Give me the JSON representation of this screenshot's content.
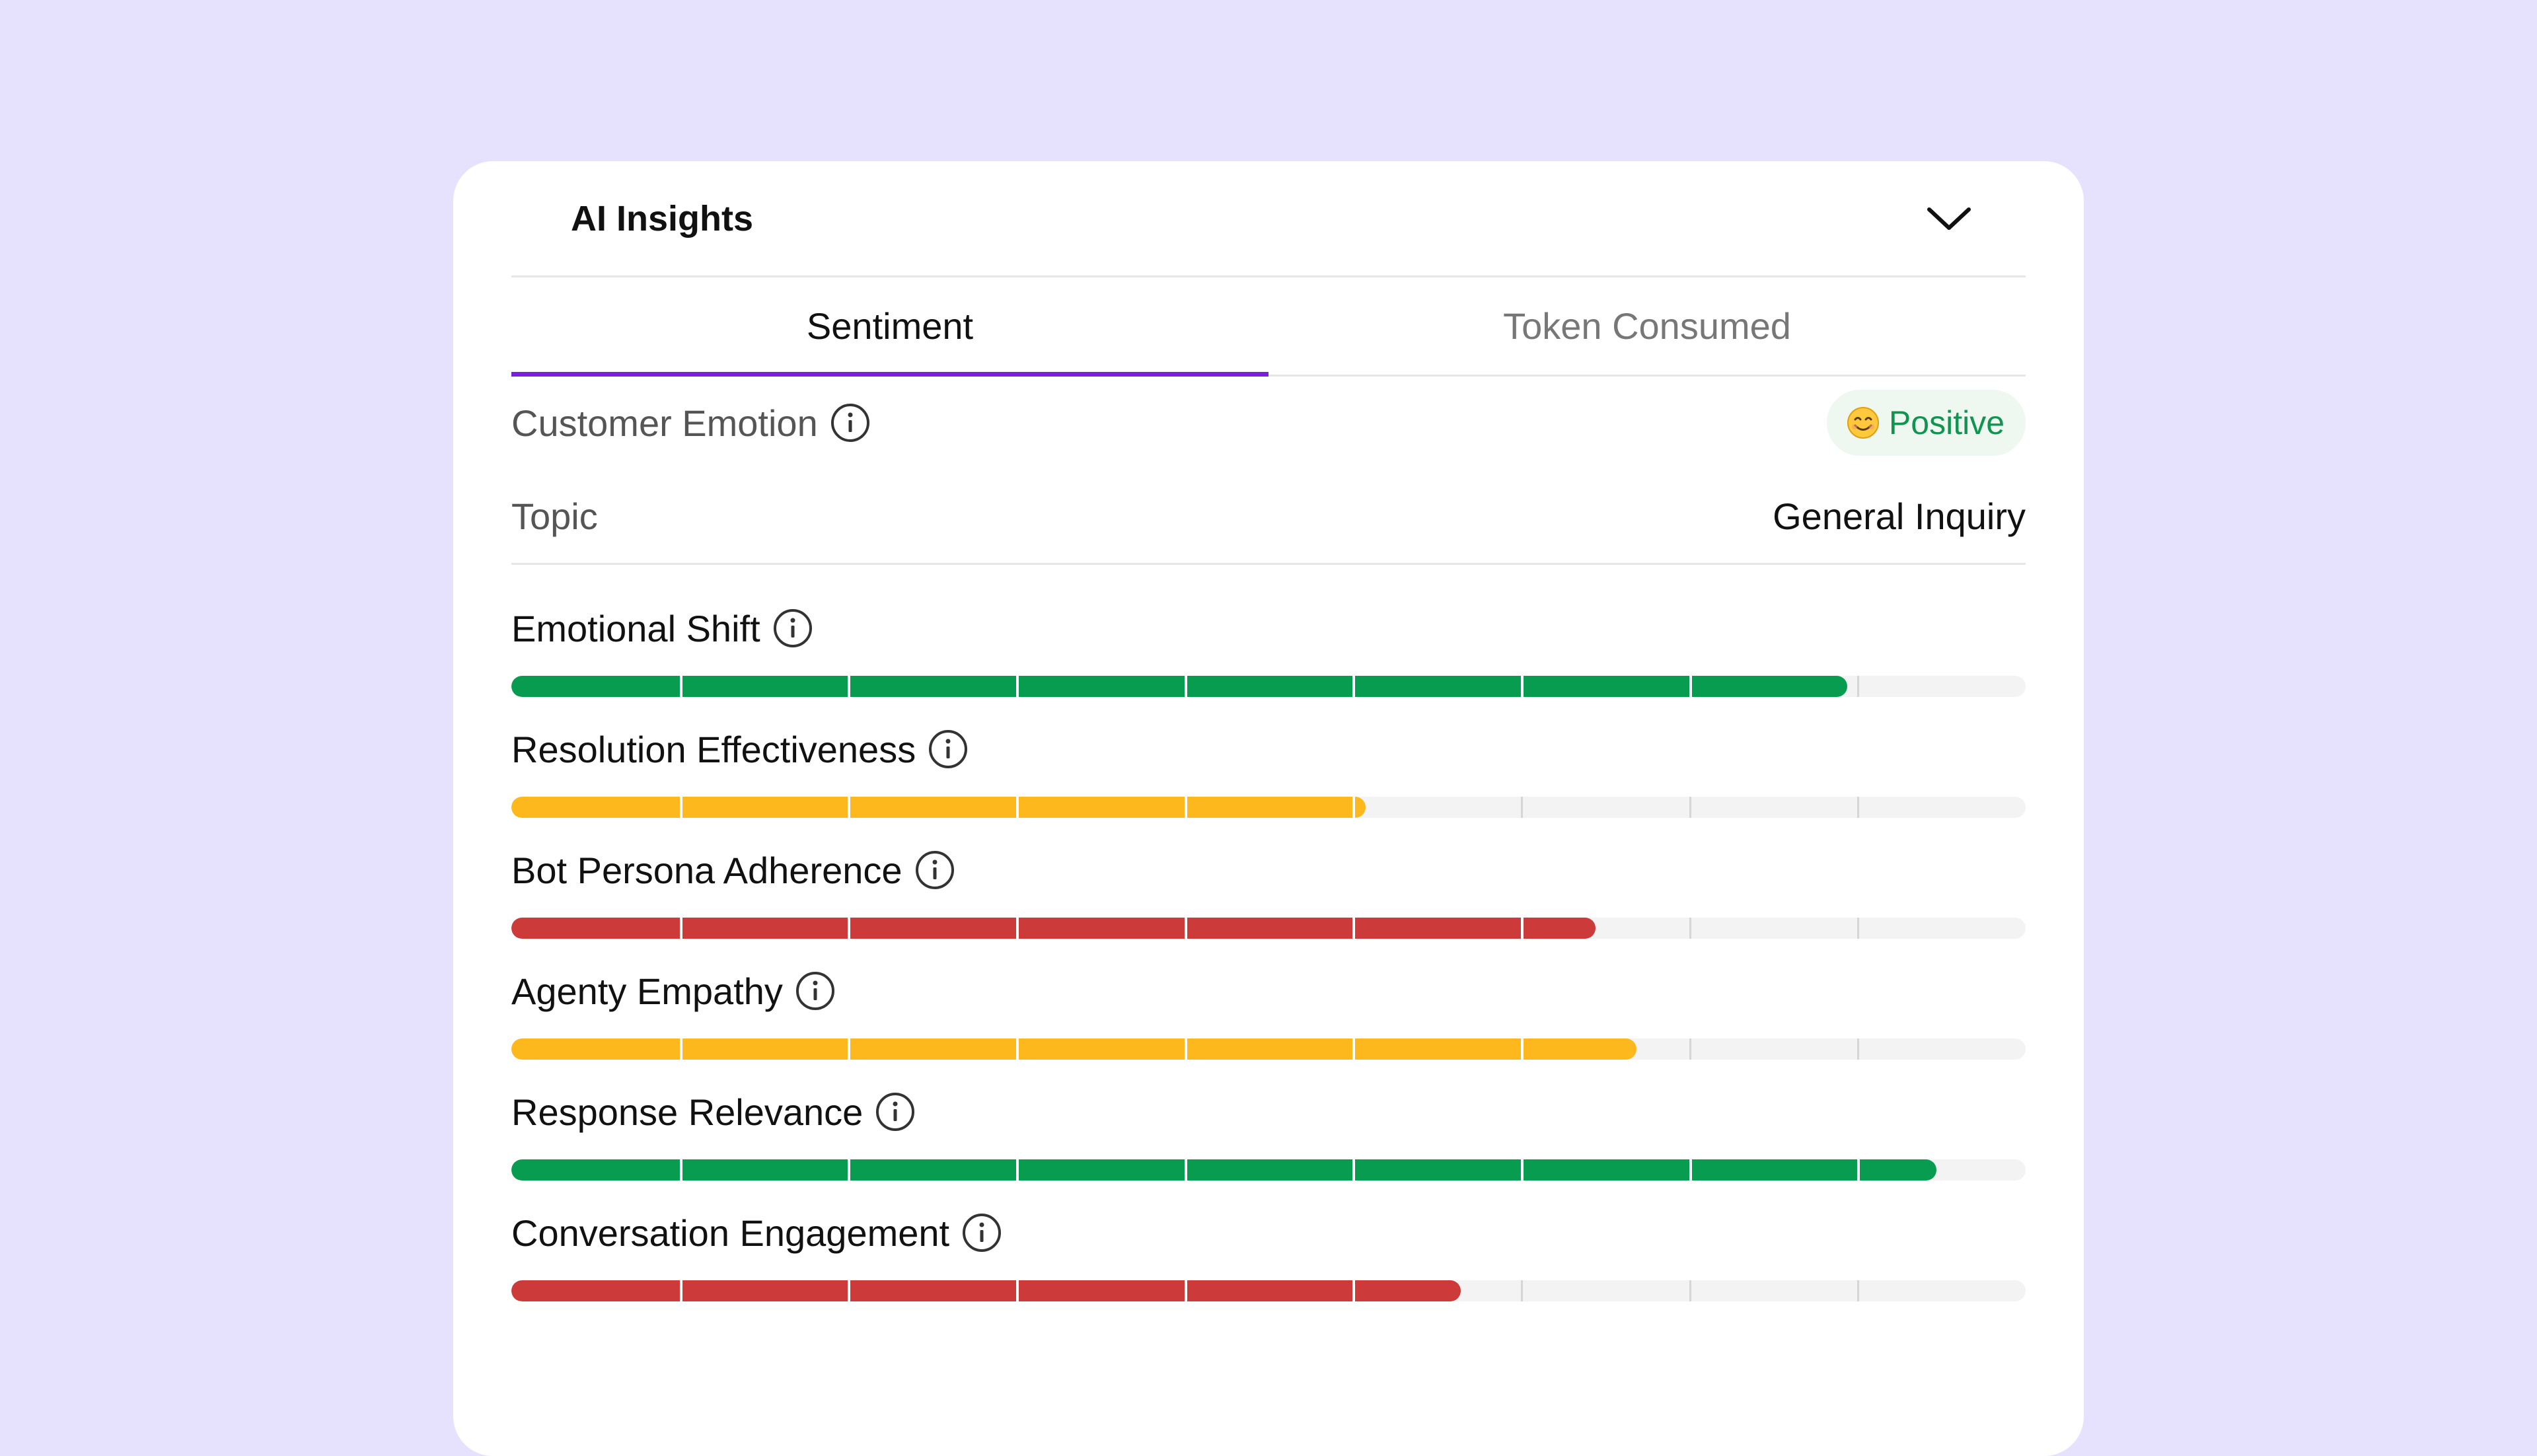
{
  "card": {
    "title": "AI Insights",
    "collapse_icon": "chevron-down-icon"
  },
  "tabs": [
    {
      "label": "Sentiment",
      "active": true
    },
    {
      "label": "Token Consumed",
      "active": false
    }
  ],
  "emotion": {
    "label": "Customer Emotion",
    "value": "Positive",
    "emoji_icon": "smiling-face-icon",
    "info_icon": "info-icon"
  },
  "topic": {
    "label": "Topic",
    "value": "General Inquiry"
  },
  "colors": {
    "green": "#079C50",
    "yellow": "#FCB81D",
    "red": "#CC3A3A",
    "accent": "#7A1FE0"
  },
  "metrics": [
    {
      "label": "Emotional Shift",
      "level": 0.882,
      "color": "green"
    },
    {
      "label": "Resolution Effectiveness",
      "level": 0.564,
      "color": "yellow"
    },
    {
      "label": "Bot Persona Adherence",
      "level": 0.716,
      "color": "red"
    },
    {
      "label": "Agenty Empathy",
      "level": 0.743,
      "color": "yellow"
    },
    {
      "label": "Response Relevance",
      "level": 0.941,
      "color": "green"
    },
    {
      "label": "Conversation Engagement",
      "level": 0.627,
      "color": "red"
    }
  ]
}
